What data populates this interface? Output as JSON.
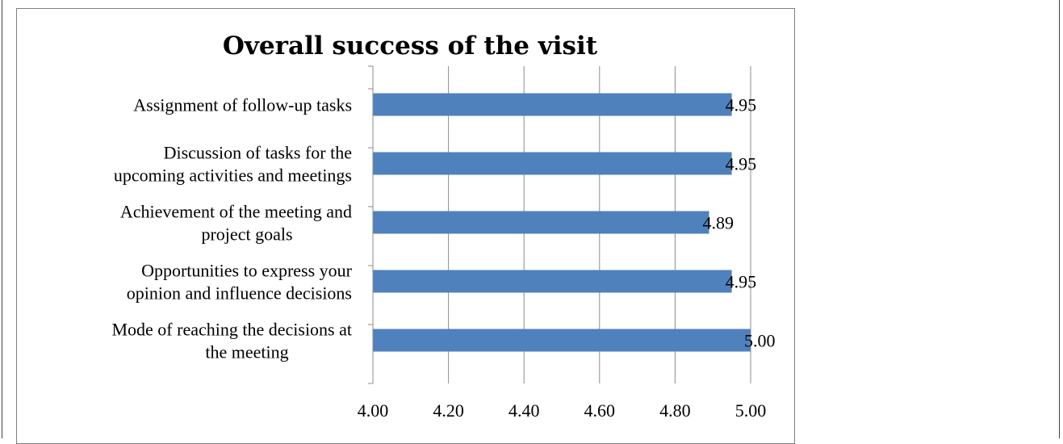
{
  "chart_data": {
    "type": "bar",
    "orientation": "horizontal",
    "title": "Overall success of the visit",
    "xlabel": "",
    "ylabel": "",
    "xlim": [
      4.0,
      5.0
    ],
    "x_ticks": [
      "4.00",
      "4.20",
      "4.40",
      "4.60",
      "4.80",
      "5.00"
    ],
    "grid": true,
    "legend": "none",
    "bar_color": "#4f81bd",
    "categories": [
      [
        "Assignment of follow-up tasks"
      ],
      [
        "Discussion of tasks for the",
        "upcoming activities and meetings"
      ],
      [
        "Achievement of the meeting and",
        "project goals"
      ],
      [
        "Opportunities to express your",
        "opinion and influence decisions"
      ],
      [
        "Mode of reaching the decisions at",
        "the meeting"
      ]
    ],
    "values": [
      4.95,
      4.95,
      4.89,
      4.95,
      5.0
    ],
    "data_labels": [
      "4.95",
      "4.95",
      "4.89",
      "4.95",
      "5.00"
    ]
  }
}
